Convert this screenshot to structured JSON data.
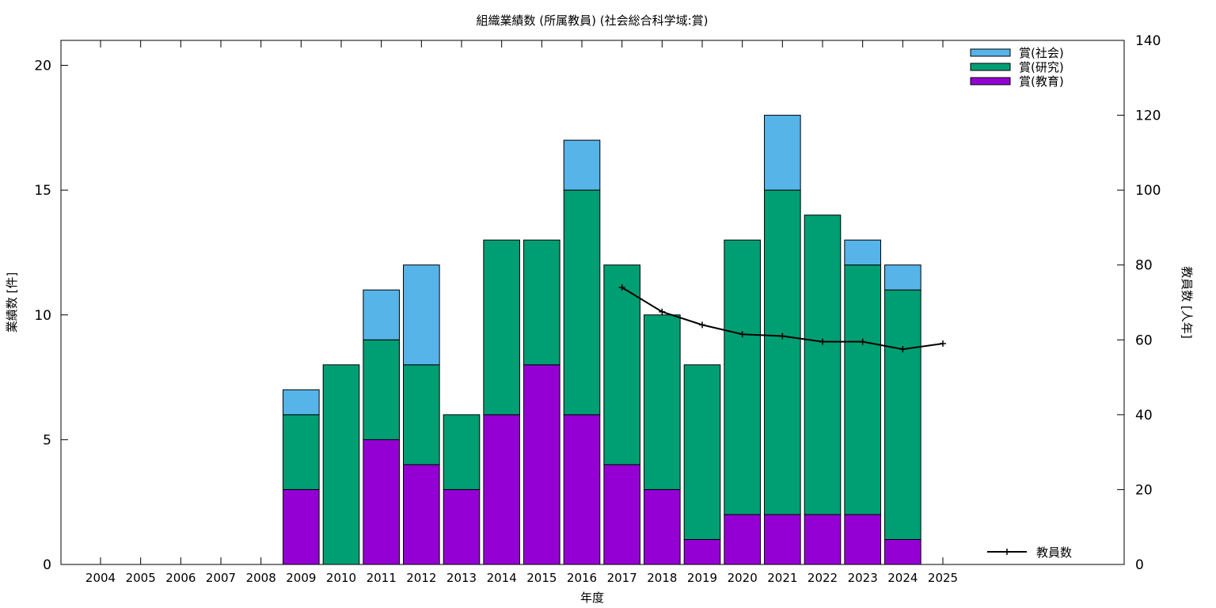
{
  "chart_data": {
    "type": "bar",
    "title": "組織業績数 (所属教員) (社会総合科学域:賞)",
    "xlabel": "年度",
    "ylabel": "業績数 [件]",
    "y2label": "教員数 [人年]",
    "ylim": [
      0,
      21
    ],
    "y2lim": [
      0,
      140
    ],
    "yticks": [
      0,
      5,
      10,
      15,
      20
    ],
    "y2ticks": [
      0,
      20,
      40,
      60,
      80,
      100,
      120,
      140
    ],
    "stacked": true,
    "categories": [
      "2004",
      "2005",
      "2006",
      "2007",
      "2008",
      "2009",
      "2010",
      "2011",
      "2012",
      "2013",
      "2014",
      "2015",
      "2016",
      "2017",
      "2018",
      "2019",
      "2020",
      "2021",
      "2022",
      "2023",
      "2024",
      "2025"
    ],
    "series": [
      {
        "name": "賞(教育)",
        "color": "#9400d3",
        "values": [
          0,
          0,
          0,
          0,
          0,
          3,
          0,
          5,
          4,
          3,
          6,
          8,
          6,
          4,
          3,
          1,
          2,
          2,
          2,
          2,
          1,
          0
        ]
      },
      {
        "name": "賞(研究)",
        "color": "#009e73",
        "values": [
          0,
          0,
          0,
          0,
          0,
          3,
          8,
          4,
          4,
          3,
          7,
          5,
          9,
          8,
          7,
          7,
          11,
          13,
          12,
          10,
          10,
          0
        ]
      },
      {
        "name": "賞(社会)",
        "color": "#56b4e9",
        "values": [
          0,
          0,
          0,
          0,
          0,
          1,
          0,
          2,
          4,
          0,
          0,
          0,
          2,
          0,
          0,
          0,
          0,
          3,
          0,
          1,
          1,
          0
        ]
      }
    ],
    "legend_order": [
      "賞(社会)",
      "賞(研究)",
      "賞(教育)"
    ],
    "legend_position": "top-right",
    "line_series": {
      "name": "教員数",
      "axis": "right",
      "color": "#000000",
      "x": [
        "2017",
        "2018",
        "2019",
        "2020",
        "2021",
        "2022",
        "2023",
        "2024",
        "2025"
      ],
      "values": [
        74,
        67.5,
        64,
        61.5,
        61,
        59.5,
        59.5,
        57.5,
        59
      ]
    },
    "line_legend_position": "bottom-right"
  }
}
